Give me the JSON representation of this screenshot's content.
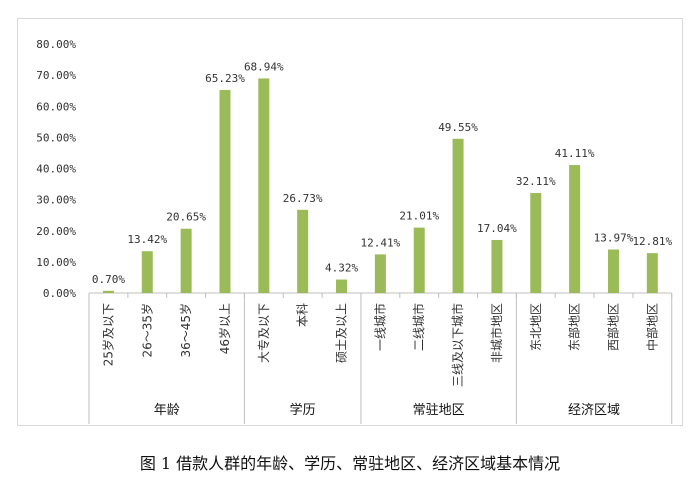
{
  "caption": "图 1 借款人群的年龄、学历、常驻地区、经济区域基本情况",
  "chart_data": {
    "type": "bar",
    "ylim": [
      0,
      80
    ],
    "yticks": [
      "0.00%",
      "10.00%",
      "20.00%",
      "30.00%",
      "40.00%",
      "50.00%",
      "60.00%",
      "70.00%",
      "80.00%"
    ],
    "bar_color": "#9bbb59",
    "categories": [
      "25岁及以下",
      "26～35岁",
      "36～45岁",
      "46岁以上",
      "大专及以下",
      "本科",
      "硕士及以上",
      "一线城市",
      "二线城市",
      "三线及以下城市",
      "非城市地区",
      "东北地区",
      "东部地区",
      "西部地区",
      "中部地区"
    ],
    "values": [
      0.7,
      13.42,
      20.65,
      65.23,
      68.94,
      26.73,
      4.32,
      12.41,
      21.01,
      49.55,
      17.04,
      32.11,
      41.11,
      13.97,
      12.81
    ],
    "labels": [
      "0.70%",
      "13.42%",
      "20.65%",
      "65.23%",
      "68.94%",
      "26.73%",
      "4.32%",
      "12.41%",
      "21.01%",
      "49.55%",
      "17.04%",
      "32.11%",
      "41.11%",
      "13.97%",
      "12.81%"
    ],
    "groups": [
      {
        "name": "年龄",
        "start": 0,
        "end": 3
      },
      {
        "name": "学历",
        "start": 4,
        "end": 6
      },
      {
        "name": "常驻地区",
        "start": 7,
        "end": 10
      },
      {
        "name": "经济区域",
        "start": 11,
        "end": 14
      }
    ]
  }
}
